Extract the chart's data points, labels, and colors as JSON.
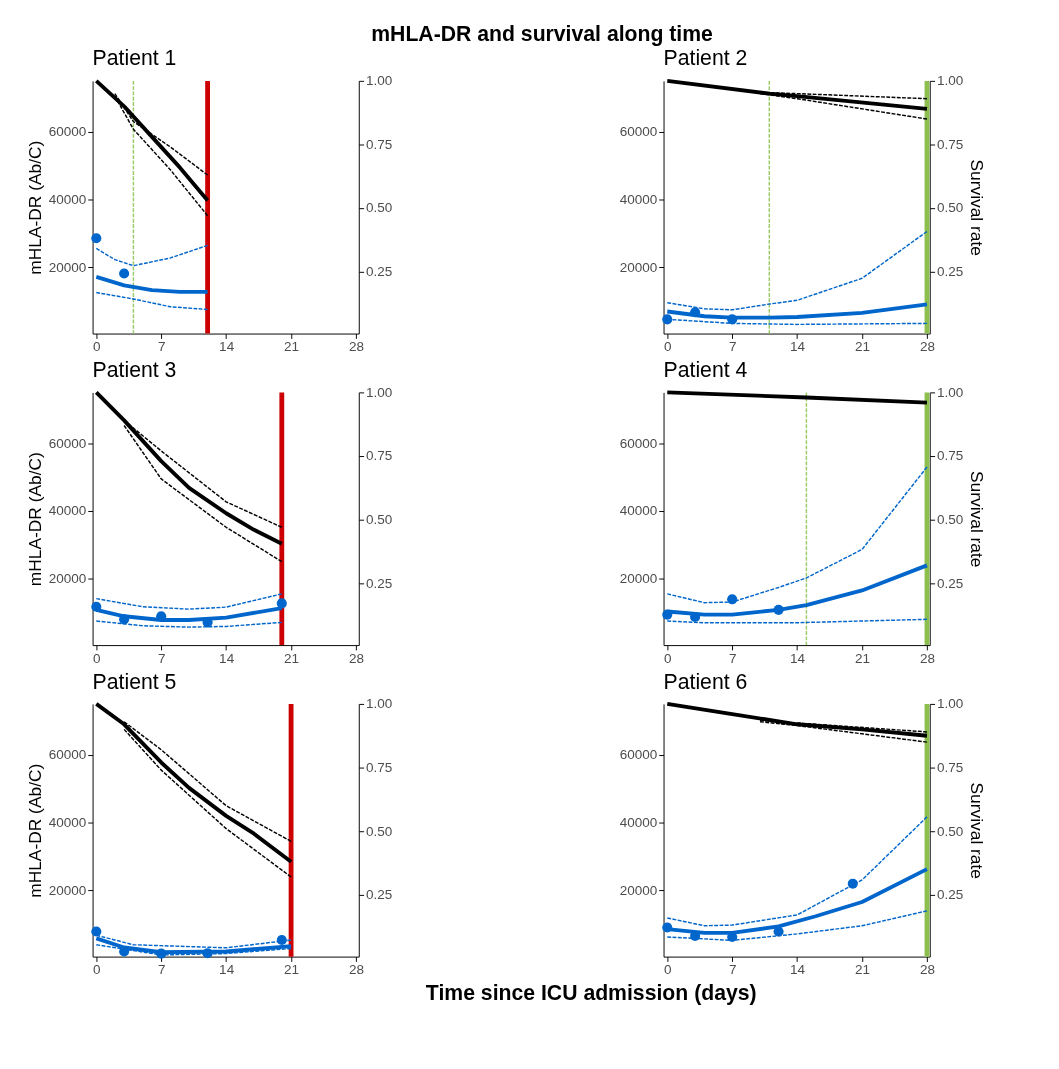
{
  "chart_data": [
    {
      "type": "line",
      "title": "Patient 1",
      "ylabel": "mHLA-DR (Ab/C)",
      "annotations": [
        "mHLA-DR and survival along time"
      ],
      "xlim": [
        -0.4,
        28.3
      ],
      "xticks": [
        0,
        7,
        14,
        21,
        28
      ],
      "ylim": [
        500,
        75000
      ],
      "yticks": [
        20000,
        40000,
        60000
      ],
      "y2lim": [
        0.007,
        1
      ],
      "y2ticks": [
        {
          "value": 0.25,
          "label": "0.25"
        },
        {
          "value": 0.5,
          "label": "0.50"
        },
        {
          "value": 0.75,
          "label": "0.75"
        },
        {
          "value": 1,
          "label": "1.00"
        }
      ],
      "grid": false,
      "series": [
        {
          "type": "line",
          "axis": "y2",
          "color": "#000000",
          "line_style": "solid",
          "x": [
            0,
            3,
            6,
            9,
            12
          ],
          "values": [
            1.0,
            0.9,
            0.78,
            0.66,
            0.53
          ]
        },
        {
          "type": "line",
          "axis": "y2",
          "color": "#000000",
          "line_style": "dashed",
          "x": [
            2,
            4,
            8,
            12
          ],
          "values": [
            0.95,
            0.84,
            0.74,
            0.63
          ]
        },
        {
          "type": "line",
          "axis": "y2",
          "color": "#000000",
          "line_style": "dashed",
          "x": [
            2,
            4,
            8,
            12
          ],
          "values": [
            0.94,
            0.81,
            0.65,
            0.47
          ]
        },
        {
          "type": "line",
          "color": "#0066cc",
          "line_style": "solid",
          "x": [
            0,
            3,
            6,
            9,
            12
          ],
          "values": [
            17200,
            14700,
            13300,
            12800,
            12800
          ]
        },
        {
          "type": "line",
          "color": "#0066cc",
          "line_style": "dashed",
          "x": [
            0,
            2,
            4,
            8,
            12
          ],
          "values": [
            25600,
            22300,
            20500,
            22800,
            26500
          ]
        },
        {
          "type": "line",
          "color": "#0066cc",
          "line_style": "dashed",
          "x": [
            0,
            4,
            8,
            12
          ],
          "values": [
            12600,
            10700,
            8400,
            7600
          ]
        },
        {
          "type": "scatter",
          "color": "#0066cc",
          "marker": "circle",
          "x": [
            0,
            3
          ],
          "values": [
            28600,
            18200
          ]
        }
      ],
      "ref_lines": [
        {
          "axis": "x",
          "value": 4,
          "color": "#99cc66",
          "line_style": "dashed"
        },
        {
          "axis": "x",
          "value": 12,
          "color": "#cc0000",
          "line_style": "solid"
        }
      ]
    },
    {
      "type": "line",
      "title": "Patient 2",
      "y2label": "Survival rate",
      "xlim": [
        -0.4,
        28.3
      ],
      "xticks": [
        0,
        7,
        14,
        21,
        28
      ],
      "ylim": [
        500,
        75000
      ],
      "yticks": [
        20000,
        40000,
        60000
      ],
      "y2lim": [
        0.007,
        1
      ],
      "y2ticks": [
        {
          "value": 0.25,
          "label": "0.25"
        },
        {
          "value": 0.5,
          "label": "0.50"
        },
        {
          "value": 0.75,
          "label": "0.75"
        },
        {
          "value": 1,
          "label": "1.00"
        }
      ],
      "grid": false,
      "series": [
        {
          "type": "line",
          "axis": "y2",
          "color": "#000000",
          "line_style": "solid",
          "x": [
            0,
            11,
            14,
            28
          ],
          "values": [
            1.0,
            0.95,
            0.94,
            0.89
          ]
        },
        {
          "type": "line",
          "axis": "y2",
          "color": "#000000",
          "line_style": "dashed",
          "x": [
            10,
            14,
            28
          ],
          "values": [
            0.955,
            0.95,
            0.93
          ]
        },
        {
          "type": "line",
          "axis": "y2",
          "color": "#000000",
          "line_style": "dashed",
          "x": [
            10,
            14,
            28
          ],
          "values": [
            0.95,
            0.93,
            0.85
          ]
        },
        {
          "type": "line",
          "color": "#0066cc",
          "line_style": "solid",
          "x": [
            0,
            4,
            7,
            11,
            14,
            21,
            28
          ],
          "values": [
            7000,
            5600,
            5200,
            5200,
            5400,
            6600,
            9100
          ]
        },
        {
          "type": "line",
          "color": "#0066cc",
          "line_style": "dashed",
          "x": [
            0,
            4,
            7,
            11,
            14,
            21,
            28
          ],
          "values": [
            9600,
            7800,
            7500,
            9200,
            10300,
            16800,
            30600
          ]
        },
        {
          "type": "line",
          "color": "#0066cc",
          "line_style": "dashed",
          "x": [
            0,
            7,
            14,
            28
          ],
          "values": [
            4700,
            3500,
            3200,
            3500
          ]
        },
        {
          "type": "scatter",
          "color": "#0066cc",
          "marker": "circle",
          "x": [
            0,
            3,
            7
          ],
          "values": [
            4700,
            6800,
            4700
          ]
        }
      ],
      "ref_lines": [
        {
          "axis": "x",
          "value": 11,
          "color": "#99cc66",
          "line_style": "dashed"
        },
        {
          "axis": "x",
          "value": 28,
          "color": "#8dbf4f",
          "line_style": "solid"
        }
      ]
    },
    {
      "type": "line",
      "title": "Patient 3",
      "ylabel": "mHLA-DR (Ab/C)",
      "xlim": [
        -0.4,
        28.3
      ],
      "xticks": [
        0,
        7,
        14,
        21,
        28
      ],
      "ylim": [
        500,
        75000
      ],
      "yticks": [
        20000,
        40000,
        60000
      ],
      "y2lim": [
        0.007,
        1
      ],
      "y2ticks": [
        {
          "value": 0.25,
          "label": "0.25"
        },
        {
          "value": 0.5,
          "label": "0.50"
        },
        {
          "value": 0.75,
          "label": "0.75"
        },
        {
          "value": 1,
          "label": "1.00"
        }
      ],
      "grid": false,
      "series": [
        {
          "type": "line",
          "axis": "y2",
          "color": "#000000",
          "line_style": "solid",
          "x": [
            0,
            3,
            7,
            10,
            14,
            17,
            20
          ],
          "values": [
            1.0,
            0.89,
            0.73,
            0.625,
            0.525,
            0.46,
            0.405
          ]
        },
        {
          "type": "line",
          "axis": "y2",
          "color": "#000000",
          "line_style": "dashed",
          "x": [
            3,
            7,
            14,
            20
          ],
          "values": [
            0.89,
            0.77,
            0.57,
            0.47
          ]
        },
        {
          "type": "line",
          "axis": "y2",
          "color": "#000000",
          "line_style": "dashed",
          "x": [
            3,
            7,
            14,
            20
          ],
          "values": [
            0.87,
            0.66,
            0.47,
            0.335
          ]
        },
        {
          "type": "line",
          "color": "#0066cc",
          "line_style": "solid",
          "x": [
            0,
            3,
            7,
            10,
            14,
            20
          ],
          "values": [
            10900,
            9000,
            7900,
            7900,
            8600,
            11400
          ]
        },
        {
          "type": "line",
          "color": "#0066cc",
          "line_style": "dashed",
          "x": [
            0,
            5,
            10,
            14,
            20
          ],
          "values": [
            14200,
            11800,
            11100,
            11700,
            15600
          ]
        },
        {
          "type": "line",
          "color": "#0066cc",
          "line_style": "dashed",
          "x": [
            0,
            5,
            10,
            14,
            20
          ],
          "values": [
            7600,
            6200,
            5800,
            6000,
            7200
          ]
        },
        {
          "type": "scatter",
          "color": "#0066cc",
          "marker": "circle",
          "x": [
            0,
            3,
            7,
            12,
            20
          ],
          "values": [
            11800,
            8100,
            9000,
            7200,
            12800
          ]
        }
      ],
      "ref_lines": [
        {
          "axis": "x",
          "value": 20,
          "color": "#cc0000",
          "line_style": "solid"
        }
      ]
    },
    {
      "type": "line",
      "title": "Patient 4",
      "y2label": "Survival rate",
      "xlim": [
        -0.4,
        28.3
      ],
      "xticks": [
        0,
        7,
        14,
        21,
        28
      ],
      "ylim": [
        500,
        75000
      ],
      "yticks": [
        20000,
        40000,
        60000
      ],
      "y2lim": [
        0.007,
        1
      ],
      "y2ticks": [
        {
          "value": 0.25,
          "label": "0.25"
        },
        {
          "value": 0.5,
          "label": "0.50"
        },
        {
          "value": 0.75,
          "label": "0.75"
        },
        {
          "value": 1,
          "label": "1.00"
        }
      ],
      "grid": false,
      "series": [
        {
          "type": "line",
          "axis": "y2",
          "color": "#000000",
          "line_style": "solid",
          "x": [
            0,
            15,
            28
          ],
          "values": [
            1.0,
            0.98,
            0.96
          ]
        },
        {
          "type": "line",
          "color": "#0066cc",
          "line_style": "solid",
          "x": [
            0,
            4,
            7,
            12,
            15,
            21,
            28
          ],
          "values": [
            10400,
            9500,
            9500,
            10900,
            12300,
            16600,
            24000
          ]
        },
        {
          "type": "line",
          "color": "#0066cc",
          "line_style": "dashed",
          "x": [
            0,
            4,
            7,
            12,
            15,
            21,
            28
          ],
          "values": [
            15600,
            13000,
            13200,
            17500,
            20300,
            28700,
            53000
          ]
        },
        {
          "type": "line",
          "color": "#0066cc",
          "line_style": "dashed",
          "x": [
            0,
            4,
            14,
            28
          ],
          "values": [
            7600,
            7100,
            7100,
            8100
          ]
        },
        {
          "type": "scatter",
          "color": "#0066cc",
          "marker": "circle",
          "x": [
            0,
            3,
            7,
            12
          ],
          "values": [
            9500,
            8800,
            14000,
            10900
          ]
        }
      ],
      "ref_lines": [
        {
          "axis": "x",
          "value": 15,
          "color": "#99cc66",
          "line_style": "dashed"
        },
        {
          "axis": "x",
          "value": 28,
          "color": "#8dbf4f",
          "line_style": "solid"
        }
      ]
    },
    {
      "type": "line",
      "title": "Patient 5",
      "ylabel": "mHLA-DR (Ab/C)",
      "xlabel": "Time since ICU admission (days)",
      "xlim": [
        -0.4,
        28.3
      ],
      "xticks": [
        0,
        7,
        14,
        21,
        28
      ],
      "ylim": [
        500,
        75000
      ],
      "yticks": [
        20000,
        40000,
        60000
      ],
      "y2lim": [
        0.007,
        1
      ],
      "y2ticks": [
        {
          "value": 0.25,
          "label": "0.25"
        },
        {
          "value": 0.5,
          "label": "0.50"
        },
        {
          "value": 0.75,
          "label": "0.75"
        },
        {
          "value": 1,
          "label": "1.00"
        }
      ],
      "grid": false,
      "series": [
        {
          "type": "line",
          "axis": "y2",
          "color": "#000000",
          "line_style": "solid",
          "x": [
            0,
            3,
            7,
            10,
            14,
            17,
            21
          ],
          "values": [
            1.0,
            0.92,
            0.77,
            0.67,
            0.56,
            0.49,
            0.38
          ]
        },
        {
          "type": "line",
          "axis": "y2",
          "color": "#000000",
          "line_style": "dashed",
          "x": [
            3,
            7,
            14,
            21
          ],
          "values": [
            0.93,
            0.82,
            0.6,
            0.46
          ]
        },
        {
          "type": "line",
          "axis": "y2",
          "color": "#000000",
          "line_style": "dashed",
          "x": [
            3,
            7,
            14,
            21
          ],
          "values": [
            0.9,
            0.74,
            0.51,
            0.32
          ]
        },
        {
          "type": "line",
          "color": "#0066cc",
          "line_style": "solid",
          "x": [
            0,
            3,
            7,
            14,
            21
          ],
          "values": [
            5900,
            3200,
            1800,
            2000,
            3600
          ]
        },
        {
          "type": "line",
          "color": "#0066cc",
          "line_style": "dashed",
          "x": [
            0,
            4,
            14,
            21
          ],
          "values": [
            6800,
            4000,
            3100,
            5400
          ]
        },
        {
          "type": "line",
          "color": "#0066cc",
          "line_style": "dashed",
          "x": [
            0,
            7,
            14,
            21
          ],
          "values": [
            4000,
            1000,
            1400,
            2900
          ]
        },
        {
          "type": "scatter",
          "color": "#0066cc",
          "marker": "circle",
          "x": [
            0,
            3,
            7,
            12,
            20
          ],
          "values": [
            7900,
            2000,
            1400,
            1500,
            5400
          ]
        }
      ],
      "ref_lines": [
        {
          "axis": "x",
          "value": 21,
          "color": "#cc0000",
          "line_style": "solid"
        }
      ]
    },
    {
      "type": "line",
      "title": "Patient 6",
      "y2label": "Survival rate",
      "xlim": [
        -0.4,
        28.3
      ],
      "xticks": [
        0,
        7,
        14,
        21,
        28
      ],
      "ylim": [
        500,
        75000
      ],
      "yticks": [
        20000,
        40000,
        60000
      ],
      "y2lim": [
        0.007,
        1
      ],
      "y2ticks": [
        {
          "value": 0.25,
          "label": "0.25"
        },
        {
          "value": 0.5,
          "label": "0.50"
        },
        {
          "value": 0.75,
          "label": "0.75"
        },
        {
          "value": 1,
          "label": "1.00"
        }
      ],
      "grid": false,
      "series": [
        {
          "type": "line",
          "axis": "y2",
          "color": "#000000",
          "line_style": "solid",
          "x": [
            0,
            7,
            14,
            21,
            28
          ],
          "values": [
            1.0,
            0.96,
            0.92,
            0.9,
            0.875
          ]
        },
        {
          "type": "line",
          "axis": "y2",
          "color": "#000000",
          "line_style": "dashed",
          "x": [
            10,
            14,
            28
          ],
          "values": [
            0.935,
            0.925,
            0.89
          ]
        },
        {
          "type": "line",
          "axis": "y2",
          "color": "#000000",
          "line_style": "dashed",
          "x": [
            10,
            14,
            28
          ],
          "values": [
            0.93,
            0.915,
            0.85
          ]
        },
        {
          "type": "line",
          "color": "#0066cc",
          "line_style": "solid",
          "x": [
            0,
            4,
            7,
            12,
            16,
            21,
            28
          ],
          "values": [
            8600,
            7500,
            7500,
            9400,
            12400,
            16600,
            26300
          ]
        },
        {
          "type": "line",
          "color": "#0066cc",
          "line_style": "dashed",
          "x": [
            0,
            4,
            7,
            14,
            21,
            28
          ],
          "values": [
            11900,
            9600,
            9800,
            12800,
            23100,
            41700
          ]
        },
        {
          "type": "line",
          "color": "#0066cc",
          "line_style": "dashed",
          "x": [
            0,
            7,
            14,
            21,
            28
          ],
          "values": [
            6300,
            5300,
            7200,
            9600,
            14000
          ]
        },
        {
          "type": "scatter",
          "color": "#0066cc",
          "marker": "circle",
          "x": [
            0,
            3,
            7,
            12,
            20
          ],
          "values": [
            9100,
            6600,
            6300,
            7900,
            22000
          ]
        }
      ],
      "ref_lines": [
        {
          "axis": "x",
          "value": 28,
          "color": "#8dbf4f",
          "line_style": "solid"
        }
      ]
    }
  ]
}
